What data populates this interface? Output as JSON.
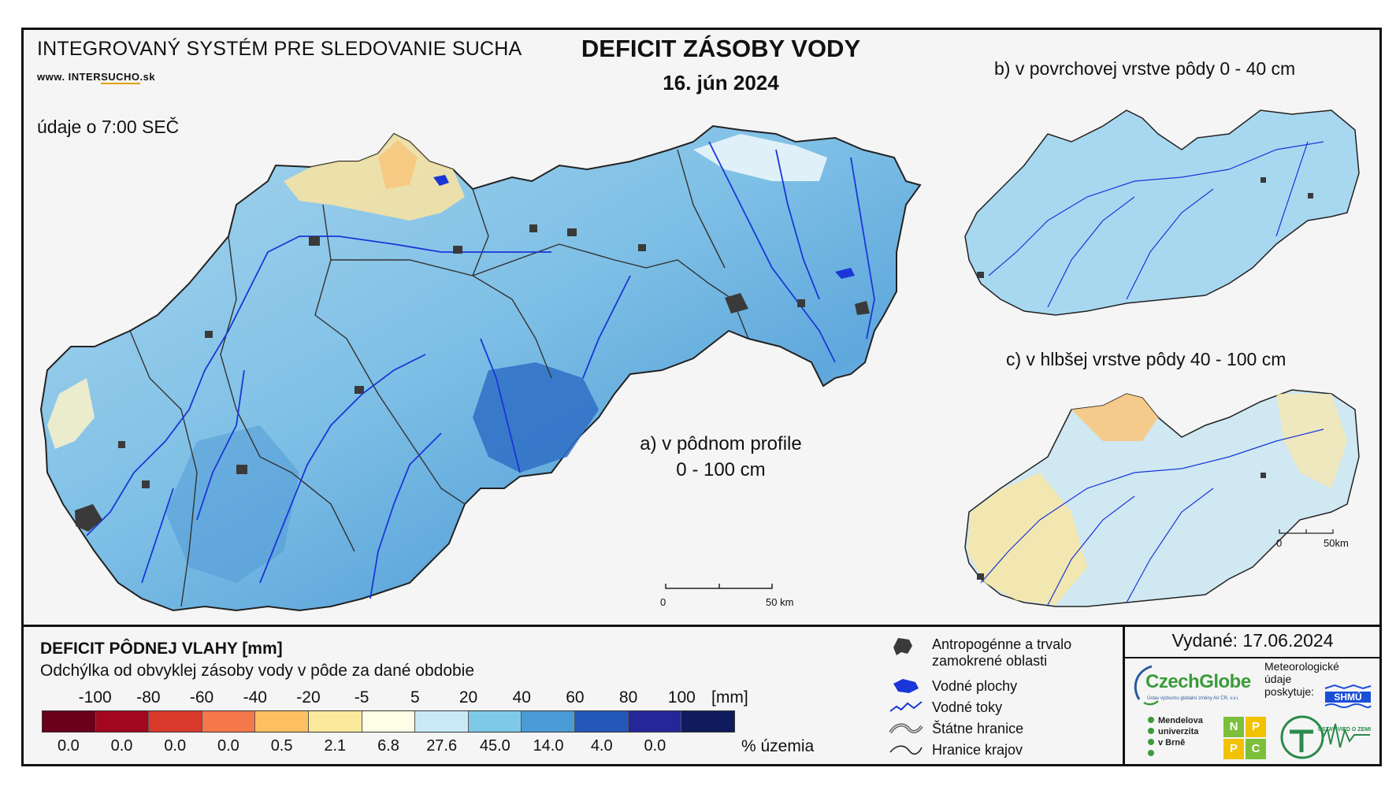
{
  "header": {
    "system_title": "INTEGROVANÝ SYSTÉM PRE SLEDOVANIE SUCHA",
    "url_prefix": "www.",
    "url_main": "INTER",
    "url_highlight": "SUCHO",
    "url_suffix": ".sk",
    "data_time": "údaje o 7:00 SEČ",
    "title": "DEFICIT ZÁSOBY VODY",
    "date": "16. jún 2024"
  },
  "panels": {
    "a_label_line1": "a) v pôdnom profile",
    "a_label_line2": "0 - 100 cm",
    "b_label": "b) v povrchovej vrstve pôdy 0 - 40 cm",
    "c_label": "c) v hlbšej vrstve pôdy 40 - 100 cm"
  },
  "scalebars": {
    "main_start": "0",
    "main_end": "50 km",
    "small_start": "0",
    "small_end": "50km"
  },
  "legend": {
    "title": "DEFICIT PÔDNEJ VLAHY [mm]",
    "subtitle": "Odchýlka od obvyklej zásoby vody v pôde za dané obdobie",
    "unit": "[mm]",
    "ticks": [
      "-100",
      "-80",
      "-60",
      "-40",
      "-20",
      "-5",
      "5",
      "20",
      "40",
      "60",
      "80",
      "100"
    ],
    "colors": [
      "#6a0019",
      "#a3061f",
      "#d8392b",
      "#f5784a",
      "#fcc062",
      "#fbe99c",
      "#fefde6",
      "#c9e9f6",
      "#7fc9e8",
      "#4a9cd7",
      "#2357b8",
      "#25269a",
      "#0f1b5c"
    ],
    "percent_values": [
      "0.0",
      "0.0",
      "0.0",
      "0.0",
      "0.5",
      "2.1",
      "6.8",
      "27.6",
      "45.0",
      "14.0",
      "4.0",
      "0.0",
      ""
    ],
    "percent_label": "% územia"
  },
  "map_keys": {
    "anthro_line1": "Antropogénne a trvalo",
    "anthro_line2": "zamokrené oblasti",
    "water_bodies": "Vodné plochy",
    "rivers": "Vodné toky",
    "state_border": "Štátne hranice",
    "region_border": "Hranice krajov"
  },
  "footer": {
    "issued": "Vydané: 17.06.2024",
    "czechglobe": "CzechGlobe",
    "czechglobe_sub": "Ústav výzkumu globální změny AV ČR, v.v.i.",
    "meteo_line1": "Meteorologické",
    "meteo_line2": "údaje",
    "meteo_line3": "poskytuje:",
    "shmu": "SHMÚ",
    "mendel_line1": "Mendelova",
    "mendel_line2": "univerzita",
    "mendel_line3": "v Brně",
    "npp_n": "N",
    "npp_p1": "P",
    "npp_p2": "P",
    "npp_c": "C",
    "uvz": "ÚSTAV VIED O ZEMI"
  }
}
